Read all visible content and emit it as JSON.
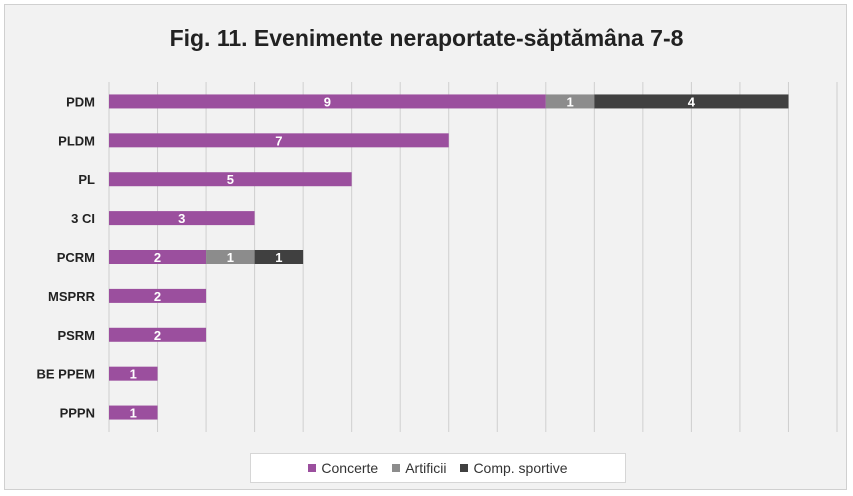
{
  "chart_data": {
    "type": "bar",
    "orientation": "horizontal",
    "stacked": true,
    "title": "Fig. 11. Evenimente neraportate-săptămâna 7-8",
    "categories": [
      "PDM",
      "PLDM",
      "PL",
      "3 CI",
      "PCRM",
      "MSPRR",
      "PSRM",
      "BE PPEM",
      "PPPN"
    ],
    "series": [
      {
        "name": "Concerte",
        "color": "#9b4f9e",
        "values": [
          9,
          7,
          5,
          3,
          2,
          2,
          2,
          1,
          1
        ]
      },
      {
        "name": "Artificii",
        "color": "#8c8c8c",
        "values": [
          1,
          0,
          0,
          0,
          1,
          0,
          0,
          0,
          0
        ]
      },
      {
        "name": "Comp. sportive",
        "color": "#404040",
        "values": [
          4,
          0,
          0,
          0,
          1,
          0,
          0,
          0,
          0
        ]
      }
    ],
    "xlim": [
      0,
      15
    ],
    "grid": true,
    "legend_position": "bottom"
  }
}
